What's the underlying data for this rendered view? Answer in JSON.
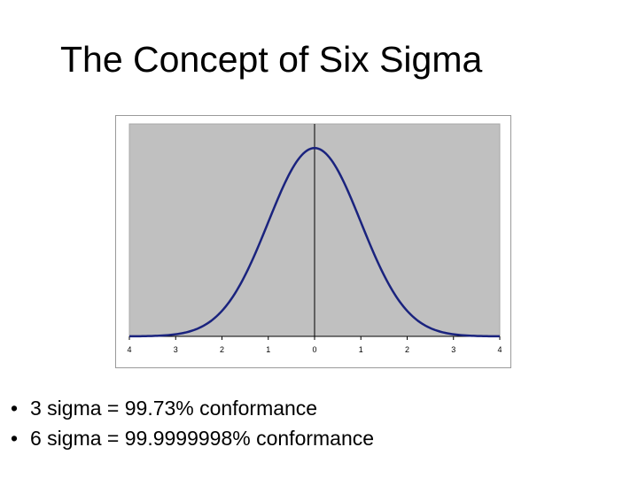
{
  "slide": {
    "title": "The Concept of Six Sigma",
    "bullets": [
      {
        "marker": "•",
        "text": "3 sigma = 99.73% conformance"
      },
      {
        "marker": "•",
        "text": "6 sigma = 99.9999998% conformance"
      }
    ]
  },
  "chart_data": {
    "type": "line",
    "title": "",
    "xlabel": "",
    "ylabel": "",
    "x_tick_labels": [
      "4",
      "3",
      "2",
      "1",
      "0",
      "1",
      "2",
      "3",
      "4"
    ],
    "x_tick_values": [
      -4,
      -3,
      -2,
      -1,
      0,
      1,
      2,
      3,
      4
    ],
    "xlim": [
      -4,
      4
    ],
    "ylim": [
      0,
      0.45
    ],
    "series": [
      {
        "function": "normal_pdf",
        "mean": 0,
        "std": 1,
        "x_range": [
          -4,
          4
        ]
      }
    ],
    "center_line_x": 0,
    "grid": false,
    "legend": "none",
    "colors": {
      "plot_area": "#c0c0c0",
      "curve": "#1a237e",
      "center_line": "#000000",
      "frame_border": "#9a9a9a"
    }
  }
}
